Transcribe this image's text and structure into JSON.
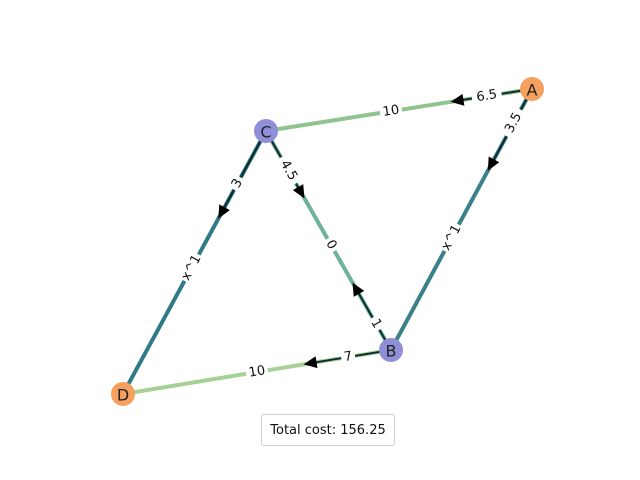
{
  "nodes": [
    {
      "id": "A",
      "label": "A",
      "color": "#f5a05f"
    },
    {
      "id": "B",
      "label": "B",
      "color": "#8f8fd8"
    },
    {
      "id": "C",
      "label": "C",
      "color": "#8f8fd8"
    },
    {
      "id": "D",
      "label": "D",
      "color": "#f5a05f"
    }
  ],
  "edges": [
    {
      "from": "C",
      "to": "A",
      "color": "#8fc38f",
      "labels": [
        "10",
        "6.5"
      ],
      "arrow": "toward C"
    },
    {
      "from": "A",
      "to": "B",
      "color": "#3a808a",
      "labels": [
        "3.5",
        "x^1"
      ],
      "arrow": "toward B"
    },
    {
      "from": "C",
      "to": "B",
      "color": "#6db39a",
      "labels": [
        "4.5",
        "0",
        "1"
      ],
      "arrow": "both"
    },
    {
      "from": "C",
      "to": "D",
      "color": "#2f7a86",
      "labels": [
        "3",
        "x^1"
      ],
      "arrow": "toward D"
    },
    {
      "from": "D",
      "to": "B",
      "color": "#a6d195",
      "labels": [
        "10",
        "7"
      ],
      "arrow": "toward D"
    }
  ],
  "total_cost": "Total cost: 156.25"
}
